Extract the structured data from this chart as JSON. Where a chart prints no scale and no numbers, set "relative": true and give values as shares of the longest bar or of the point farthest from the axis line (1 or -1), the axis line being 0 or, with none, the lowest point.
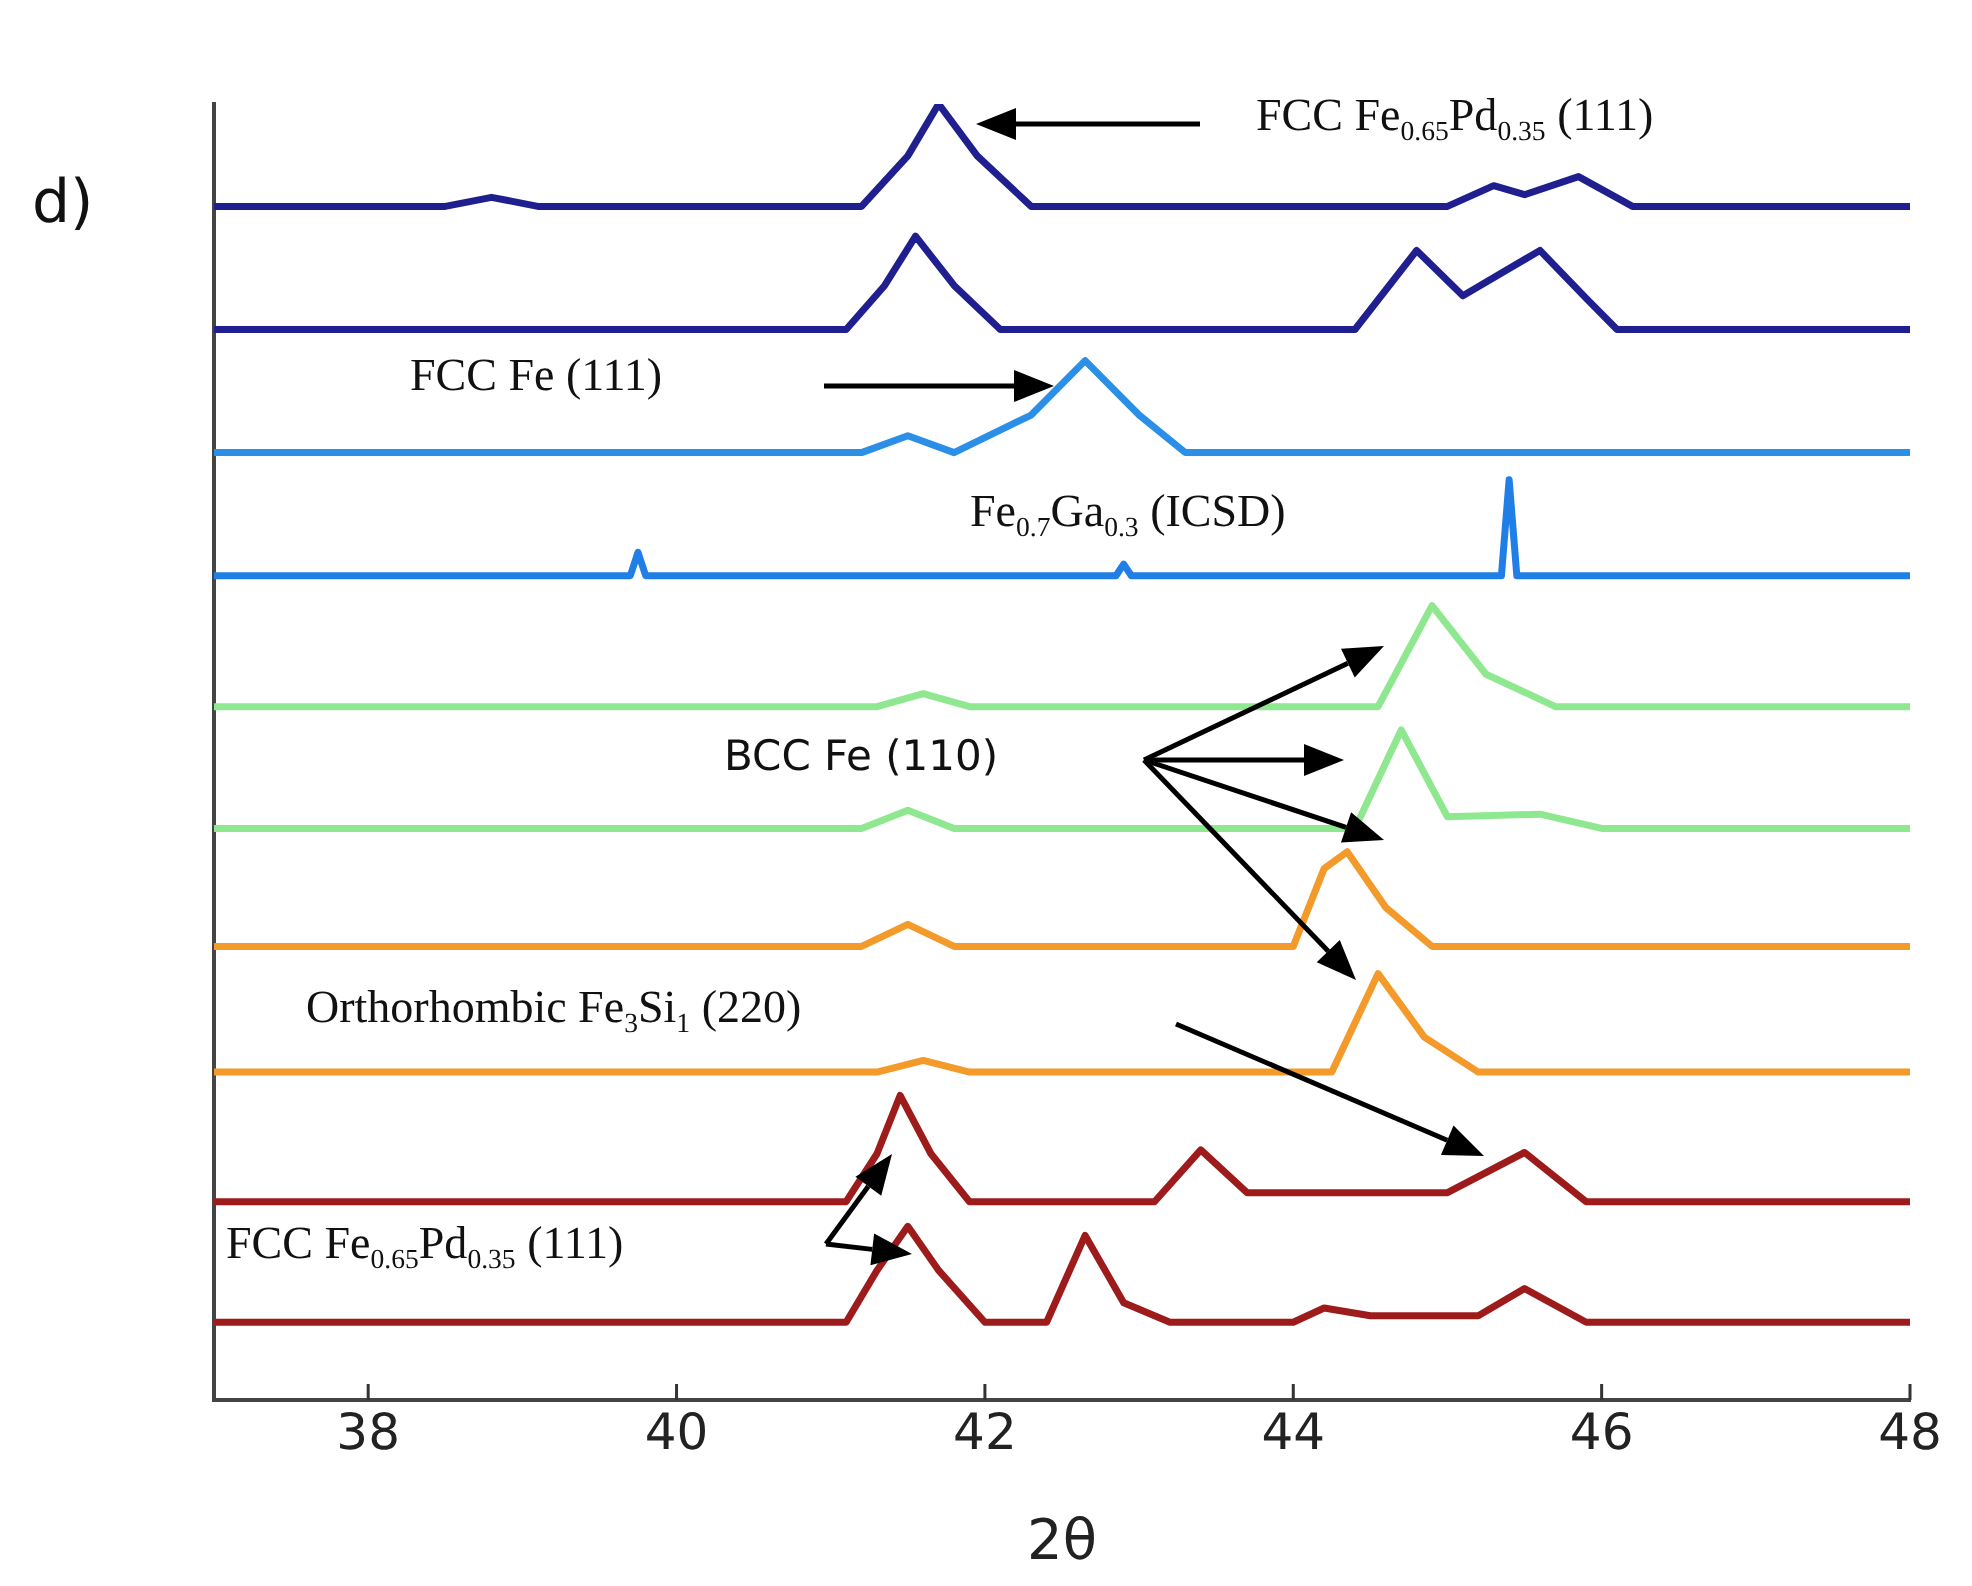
{
  "chart_data": {
    "type": "line",
    "title": "d)",
    "xlabel": "2θ",
    "relative": true,
    "xlim": [
      37,
      48
    ],
    "xticks": [
      38,
      40,
      42,
      44,
      46,
      48
    ],
    "grid": false,
    "legend": false,
    "marker": "none",
    "line_style": "solid",
    "tick_labels": "x",
    "annotations": [
      "FCC Fe$_{0.65}$Pd$_{0.35}$ (111)",
      "FCC Fe  (111)",
      "Fe$_{0.7}$Ga$_{0.3}$ (ICSD)",
      "BCC Fe (110)",
      "Orthorhombic Fe$_{3}$Si$_{1}$ (220)",
      "FCC Fe$_{0.65}$Pd$_{0.35}$ (111)"
    ],
    "series": [
      {
        "color": "#1f1f8f",
        "x": [
          37,
          38.5,
          38.8,
          39.1,
          41.2,
          41.5,
          41.7,
          41.95,
          42.3,
          45.0,
          45.3,
          45.5,
          45.85,
          46.2,
          48
        ],
        "values": [
          0.921,
          0.921,
          0.928,
          0.921,
          0.921,
          0.96,
          1,
          0.96,
          0.921,
          0.921,
          0.937,
          0.93,
          0.944,
          0.921,
          0.921
        ]
      },
      {
        "color": "#1f1f8f",
        "x": [
          37,
          41.1,
          41.35,
          41.55,
          41.8,
          42.1,
          44.4,
          44.8,
          45.1,
          45.6,
          45.9,
          46.1,
          48
        ],
        "values": [
          0.826,
          0.826,
          0.86,
          0.898,
          0.86,
          0.826,
          0.826,
          0.887,
          0.852,
          0.887,
          0.85,
          0.826,
          0.826
        ]
      },
      {
        "color": "#2b8fe8",
        "x": [
          37,
          41.2,
          41.5,
          41.8,
          42.3,
          42.65,
          43.0,
          43.3,
          48
        ],
        "values": [
          0.731,
          0.731,
          0.744,
          0.731,
          0.76,
          0.802,
          0.76,
          0.731,
          0.731
        ]
      },
      {
        "color": "#1f7fe6",
        "x": [
          37,
          39.7,
          39.75,
          39.8,
          42.85,
          42.9,
          42.95,
          45.35,
          45.4,
          45.45,
          48
        ],
        "values": [
          0.636,
          0.636,
          0.654,
          0.636,
          0.636,
          0.645,
          0.636,
          0.636,
          0.71,
          0.636,
          0.636
        ]
      },
      {
        "color": "#8fe88f",
        "x": [
          37,
          41.3,
          41.6,
          41.9,
          44.55,
          44.9,
          45.25,
          45.7,
          48
        ],
        "values": [
          0.535,
          0.535,
          0.545,
          0.535,
          0.535,
          0.613,
          0.56,
          0.535,
          0.535
        ]
      },
      {
        "color": "#8fe88f",
        "x": [
          37,
          41.2,
          41.5,
          41.8,
          44.4,
          44.7,
          45.0,
          45.6,
          46.0,
          48
        ],
        "values": [
          0.441,
          0.441,
          0.455,
          0.441,
          0.441,
          0.517,
          0.45,
          0.452,
          0.441,
          0.441
        ]
      },
      {
        "color": "#f39a2b",
        "x": [
          37,
          41.2,
          41.5,
          41.8,
          44.0,
          44.2,
          44.35,
          44.6,
          44.9,
          48
        ],
        "values": [
          0.35,
          0.35,
          0.367,
          0.35,
          0.35,
          0.41,
          0.423,
          0.38,
          0.35,
          0.35
        ]
      },
      {
        "color": "#f39a2b",
        "x": [
          37,
          41.3,
          41.6,
          41.9,
          44.25,
          44.55,
          44.85,
          45.2,
          48
        ],
        "values": [
          0.253,
          0.253,
          0.262,
          0.253,
          0.253,
          0.329,
          0.28,
          0.253,
          0.253
        ]
      },
      {
        "color": "#9e1b1b",
        "x": [
          37,
          41.1,
          41.3,
          41.45,
          41.65,
          41.9,
          43.1,
          43.4,
          43.7,
          45.0,
          45.5,
          45.9,
          48
        ],
        "values": [
          0.153,
          0.153,
          0.19,
          0.235,
          0.19,
          0.153,
          0.153,
          0.193,
          0.16,
          0.16,
          0.191,
          0.153,
          0.153
        ]
      },
      {
        "color": "#9e1b1b",
        "x": [
          37,
          41.1,
          41.3,
          41.5,
          41.7,
          42.0,
          42.4,
          42.65,
          42.9,
          43.2,
          44.0,
          44.2,
          44.5,
          45.2,
          45.5,
          45.9,
          48
        ],
        "values": [
          0.06,
          0.06,
          0.1,
          0.134,
          0.1,
          0.06,
          0.06,
          0.127,
          0.075,
          0.06,
          0.06,
          0.071,
          0.065,
          0.065,
          0.086,
          0.06,
          0.06
        ]
      }
    ]
  }
}
